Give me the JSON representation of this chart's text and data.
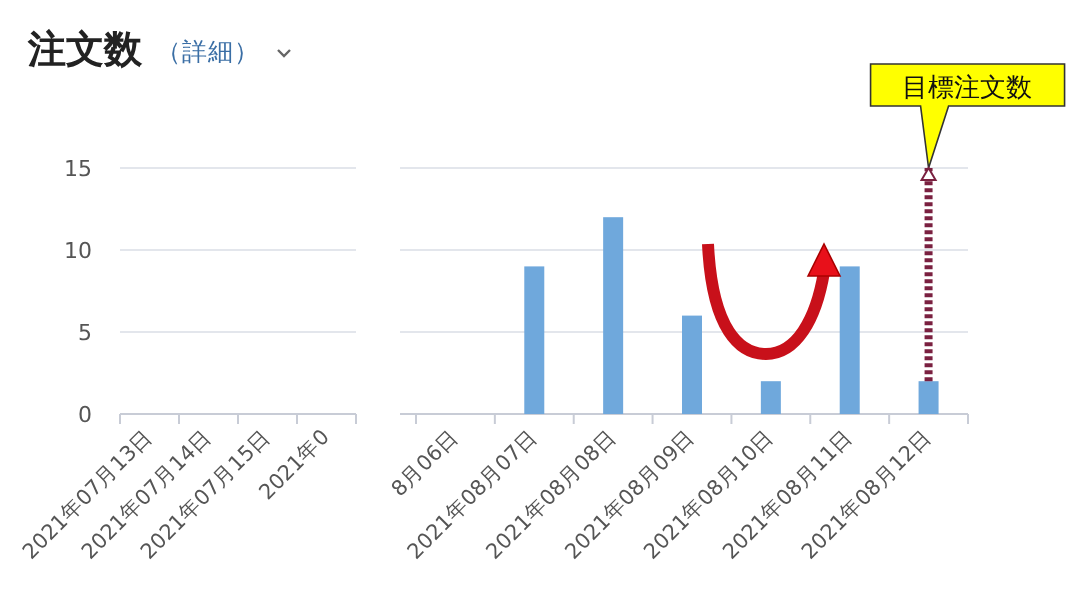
{
  "chart_data": [
    {
      "type": "bar",
      "title": "注文数",
      "subtitle": "（詳細）",
      "categories": [
        "2021年07月13日",
        "2021年07月14日",
        "2021年07月15日",
        "2021年0"
      ],
      "values": [
        0,
        0,
        0,
        0
      ],
      "color": "#6fa8dc",
      "ylim": [
        0,
        15
      ],
      "yticks": [
        0,
        5,
        10,
        15
      ],
      "grid": "y"
    },
    {
      "type": "bar",
      "categories": [
        "8月06日",
        "2021年08月07日",
        "2021年08月08日",
        "2021年08月09日",
        "2021年08月10日",
        "2021年08月11日",
        "2021年08月12日"
      ],
      "values": [
        0,
        9,
        12,
        6,
        2,
        9,
        2
      ],
      "color": "#6fa8dc",
      "ylim": [
        0,
        15
      ],
      "yticks": [
        0,
        5,
        10,
        15
      ],
      "grid": "y",
      "tick_labels": "x",
      "errors": [
        null,
        null,
        null,
        null,
        null,
        null,
        [
          2,
          15
        ]
      ],
      "annotations": [
        "目標注文数"
      ]
    }
  ]
}
